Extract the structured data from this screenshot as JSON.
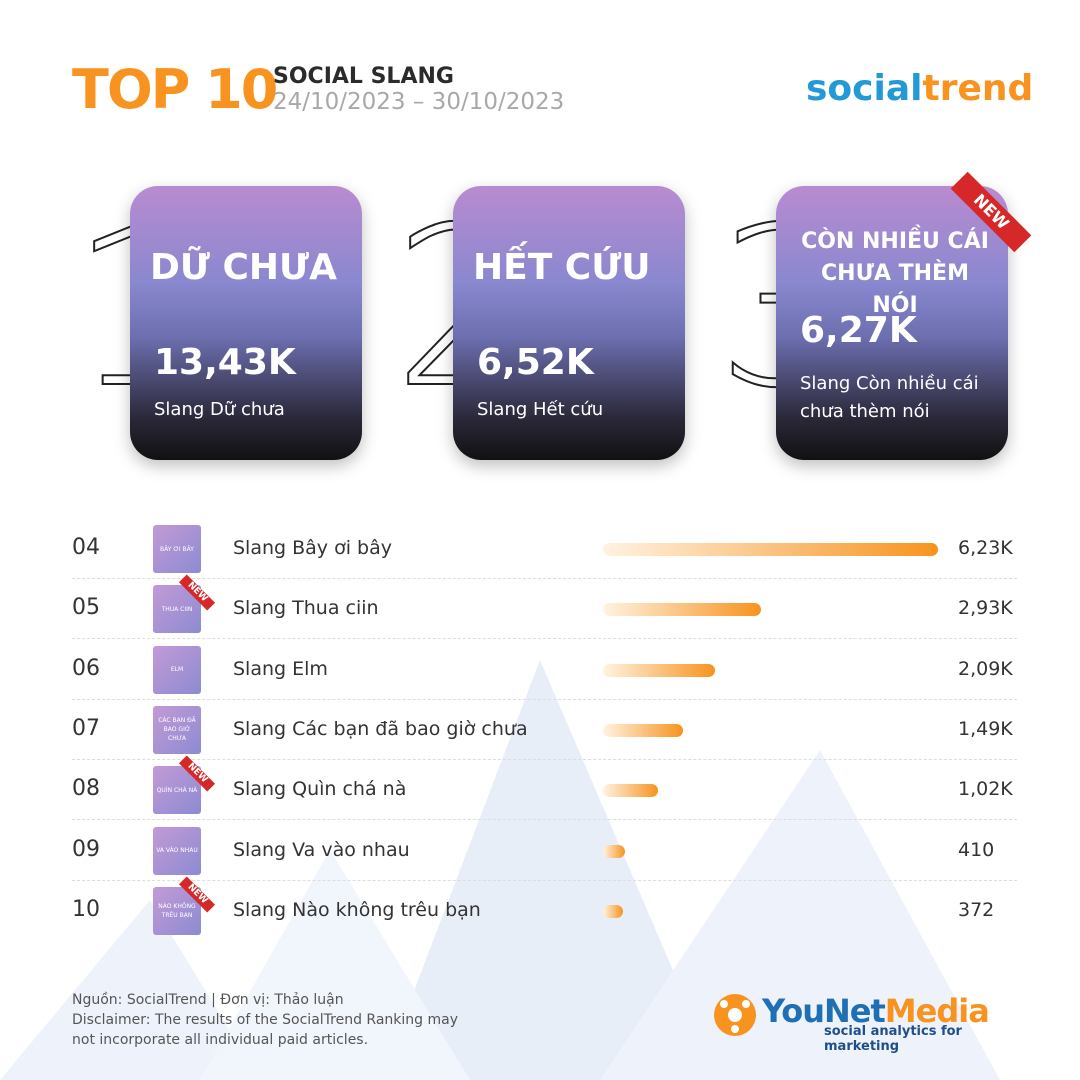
{
  "header": {
    "title": "TOP 10",
    "subtitle": "SOCIAL SLANG",
    "period": "24/10/2023 – 30/10/2023",
    "brand_part1": "social",
    "brand_part2": "trend"
  },
  "top3": [
    {
      "rank": "1",
      "name": "DỮ CHƯA",
      "value": "13,43K",
      "caption": "Slang Dữ chưa"
    },
    {
      "rank": "2",
      "name": "HẾT CỨU",
      "value": "6,52K",
      "caption": "Slang Hết cứu"
    },
    {
      "rank": "3",
      "name": "CÒN NHIỀU CÁI CHƯA THÈM NÓI",
      "value": "6,27K",
      "caption": "Slang Còn nhiều cái chưa thèm nói",
      "badge": "NEW"
    }
  ],
  "ranking": [
    {
      "rank": "04",
      "thumb": "BÂY ƠI BÂY",
      "label": "Slang Bây ơi bây",
      "value": 6230,
      "value_label": "6,23K"
    },
    {
      "rank": "05",
      "thumb": "THUA CIIN",
      "label": "Slang Thua ciin",
      "value": 2930,
      "value_label": "2,93K",
      "badge": "NEW"
    },
    {
      "rank": "06",
      "thumb": "ELM",
      "label": "Slang Elm",
      "value": 2090,
      "value_label": "2,09K"
    },
    {
      "rank": "07",
      "thumb": "CÁC BẠN ĐÃ BAO GIỜ CHƯA",
      "label": "Slang Các bạn đã bao giờ chưa",
      "value": 1490,
      "value_label": "1,49K"
    },
    {
      "rank": "08",
      "thumb": "QUÌN CHÁ NÀ",
      "label": "Slang Quìn chá nà",
      "value": 1020,
      "value_label": "1,02K",
      "badge": "NEW"
    },
    {
      "rank": "09",
      "thumb": "VA VÀO NHAU",
      "label": "Slang Va vào nhau",
      "value": 410,
      "value_label": "410"
    },
    {
      "rank": "10",
      "thumb": "NÀO KHÔNG TRÊU BẠN",
      "label": "Slang Nào không trêu bạn",
      "value": 372,
      "value_label": "372",
      "badge": "NEW"
    }
  ],
  "footer": {
    "source": "Nguồn: SocialTrend |  Đơn vị: Thảo luận",
    "disclaimer": "Disclaimer: The results of the SocialTrend Ranking may not incorporate all individual paid articles.",
    "logo_part1": "YouNet",
    "logo_part2": "Media",
    "tagline": "social analytics for marketing"
  }
}
